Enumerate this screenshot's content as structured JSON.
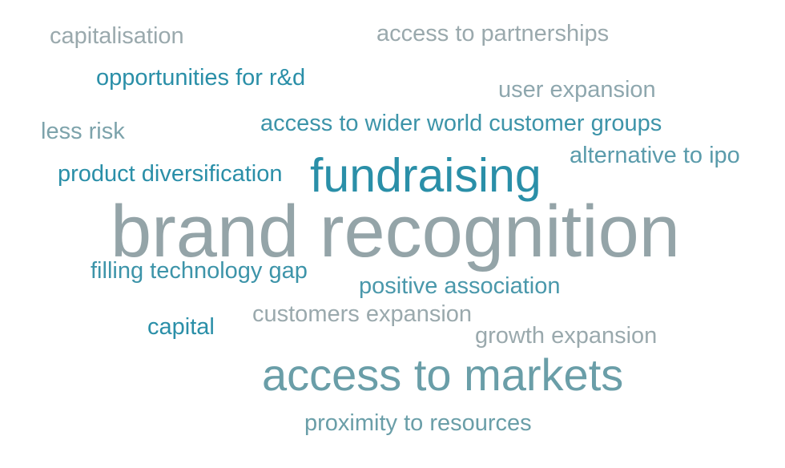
{
  "palette": {
    "teal_dark": "#2a8fa8",
    "teal": "#3d94a9",
    "slate": "#6a9ea8",
    "gray_blue": "#8ea7ae",
    "gray": "#9aa9ad"
  },
  "words": [
    {
      "id": "w-capitalisation",
      "text": "capitalisation",
      "weight": 1,
      "color": "#9aa9ad"
    },
    {
      "id": "w-access-partnerships",
      "text": "access to partnerships",
      "weight": 1,
      "color": "#9aa9ad"
    },
    {
      "id": "w-opportunities-rd",
      "text": "opportunities for r&d",
      "weight": 1,
      "color": "#2a8fa8"
    },
    {
      "id": "w-user-expansion",
      "text": "user expansion",
      "weight": 1,
      "color": "#8ea7ae"
    },
    {
      "id": "w-less-risk",
      "text": "less risk",
      "weight": 1,
      "color": "#7da3ab"
    },
    {
      "id": "w-access-wider-world",
      "text": "access to wider world customer groups",
      "weight": 1,
      "color": "#3d94a9"
    },
    {
      "id": "w-alternative-ipo",
      "text": "alternative to ipo",
      "weight": 1,
      "color": "#5a9bab"
    },
    {
      "id": "w-product-div",
      "text": "product diversification",
      "weight": 1,
      "color": "#2a8fa8"
    },
    {
      "id": "w-fundraising",
      "text": "fundraising",
      "weight": 3,
      "color": "#2a8fa8"
    },
    {
      "id": "w-brand-recognition",
      "text": "brand recognition",
      "weight": 5,
      "color": "#94a4a8"
    },
    {
      "id": "w-filling-tech-gap",
      "text": "filling technology gap",
      "weight": 1,
      "color": "#3d94a9"
    },
    {
      "id": "w-positive-assoc",
      "text": "positive association",
      "weight": 1,
      "color": "#4a98ab"
    },
    {
      "id": "w-customers-exp",
      "text": "customers expansion",
      "weight": 1,
      "color": "#9aa9ad"
    },
    {
      "id": "w-capital",
      "text": "capital",
      "weight": 1,
      "color": "#2a8fa8"
    },
    {
      "id": "w-growth-exp",
      "text": "growth expansion",
      "weight": 1,
      "color": "#9aa9ad"
    },
    {
      "id": "w-access-markets",
      "text": "access to markets",
      "weight": 3,
      "color": "#6a9ea8"
    },
    {
      "id": "w-proximity-resources",
      "text": "proximity to resources",
      "weight": 1,
      "color": "#6a9ea8"
    }
  ]
}
